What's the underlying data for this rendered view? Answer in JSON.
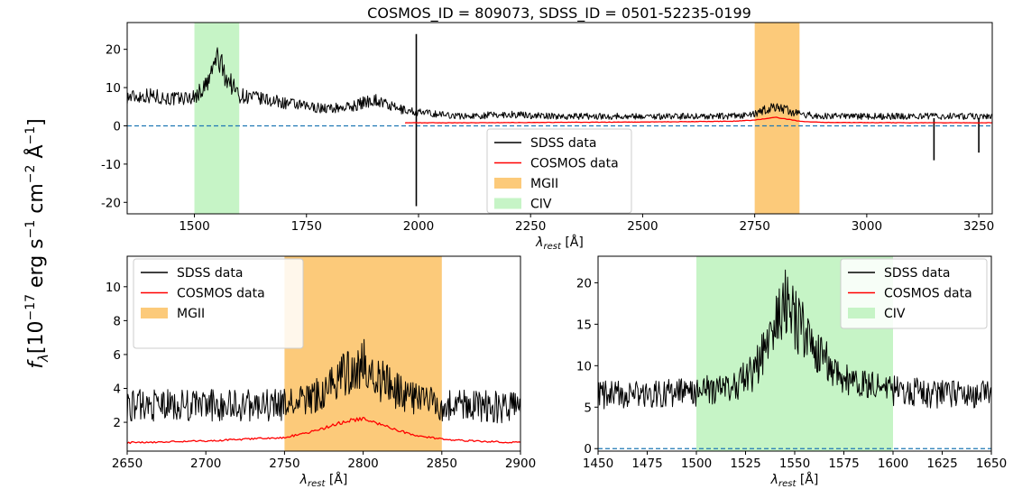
{
  "figure": {
    "title": "COSMOS_ID = 809073, SDSS_ID = 0501-52235-0199",
    "ylabel_main": "f",
    "ylabel_sub": "λ",
    "ylabel_units": "[10",
    "ylabel_exp1": "−17",
    "ylabel_units2": " erg s",
    "ylabel_exp2": "−1",
    "ylabel_units3": " cm",
    "ylabel_exp3": "−2",
    "ylabel_units4": " Å",
    "ylabel_exp4": "−1",
    "ylabel_units5": "]",
    "xlabel_main": "λ",
    "xlabel_sub": "rest",
    "xlabel_units": " [Å]"
  },
  "colors": {
    "sdss": "#000000",
    "cosmos": "#ff0000",
    "mgii": "#fcca7a",
    "civ": "#c6f4c6",
    "zero_line": "#1f77b4"
  },
  "chart_data": [
    {
      "type": "line",
      "panel": "top",
      "xlim": [
        1350,
        3280
      ],
      "ylim": [
        -23,
        27
      ],
      "xticks": [
        1500,
        1750,
        2000,
        2250,
        2500,
        2750,
        3000,
        3250
      ],
      "yticks": [
        -20,
        -10,
        0,
        10,
        20
      ],
      "bands": [
        {
          "name": "CIV",
          "x": [
            1500,
            1600
          ],
          "color": "civ"
        },
        {
          "name": "MGII",
          "x": [
            2750,
            2850
          ],
          "color": "mgii"
        }
      ],
      "series": [
        {
          "name": "SDSS data",
          "key": "sdss",
          "color": "sdss",
          "x": [
            1350,
            1400,
            1450,
            1500,
            1530,
            1550,
            1570,
            1600,
            1650,
            1700,
            1750,
            1800,
            1850,
            1900,
            1950,
            2000,
            2100,
            2200,
            2300,
            2400,
            2500,
            2600,
            2700,
            2750,
            2780,
            2800,
            2850,
            2900,
            3000,
            3100,
            3200,
            3280
          ],
          "y": [
            7.5,
            8,
            7,
            7.5,
            11,
            18,
            13,
            8,
            7,
            6,
            5,
            4.5,
            5,
            7,
            4.5,
            3.5,
            2.5,
            3,
            2.5,
            2.5,
            2.5,
            2.5,
            2.5,
            3,
            4.5,
            5,
            3,
            2.5,
            2.5,
            2.5,
            2.5,
            2.5
          ],
          "spikes": [
            {
              "x": 1995,
              "ymin": -21,
              "ymax": 24
            },
            {
              "x": 3150,
              "ymin": -9,
              "ymax": 2
            },
            {
              "x": 3250,
              "ymin": -7,
              "ymax": 2
            }
          ]
        },
        {
          "name": "COSMOS data",
          "key": "cosmos",
          "color": "cosmos",
          "x": [
            1970,
            2100,
            2300,
            2500,
            2700,
            2750,
            2800,
            2850,
            2900,
            3100,
            3280
          ],
          "y": [
            0.8,
            0.8,
            0.9,
            1.0,
            1.2,
            1.5,
            2.2,
            1.2,
            0.9,
            0.8,
            0.8
          ]
        }
      ],
      "legend": {
        "position": "lower-center",
        "entries": [
          "SDSS data",
          "COSMOS data",
          "MGII",
          "CIV"
        ]
      },
      "zero_line": 0
    },
    {
      "type": "line",
      "panel": "bottom-left",
      "xlim": [
        2650,
        2900
      ],
      "ylim": [
        0.3,
        11.8
      ],
      "xticks": [
        2650,
        2700,
        2750,
        2800,
        2850,
        2900
      ],
      "yticks": [
        2,
        4,
        6,
        8,
        10
      ],
      "bands": [
        {
          "name": "MGII",
          "x": [
            2750,
            2850
          ],
          "color": "mgii"
        }
      ],
      "series": [
        {
          "name": "SDSS data",
          "key": "sdss",
          "color": "sdss",
          "x": [
            2650,
            2700,
            2750,
            2770,
            2790,
            2800,
            2810,
            2830,
            2850,
            2870,
            2900
          ],
          "y": [
            3.0,
            3.0,
            3.0,
            3.5,
            5.0,
            5.5,
            4.5,
            3.5,
            3.0,
            3.0,
            2.8
          ]
        },
        {
          "name": "COSMOS data",
          "key": "cosmos",
          "color": "cosmos",
          "x": [
            2650,
            2700,
            2750,
            2770,
            2790,
            2800,
            2810,
            2830,
            2850,
            2870,
            2900
          ],
          "y": [
            0.8,
            0.9,
            1.1,
            1.5,
            2.1,
            2.2,
            1.9,
            1.3,
            1.0,
            0.9,
            0.8
          ]
        }
      ],
      "legend": {
        "position": "top-left",
        "entries": [
          "SDSS data",
          "COSMOS data",
          "MGII"
        ]
      }
    },
    {
      "type": "line",
      "panel": "bottom-right",
      "xlim": [
        1450,
        1650
      ],
      "ylim": [
        -0.3,
        23.2
      ],
      "xticks": [
        1450,
        1475,
        1500,
        1525,
        1550,
        1575,
        1600,
        1625,
        1650
      ],
      "yticks": [
        0,
        5,
        10,
        15,
        20
      ],
      "bands": [
        {
          "name": "CIV",
          "x": [
            1500,
            1600
          ],
          "color": "civ"
        }
      ],
      "series": [
        {
          "name": "SDSS data",
          "key": "sdss",
          "color": "sdss",
          "x": [
            1450,
            1475,
            1500,
            1520,
            1530,
            1540,
            1545,
            1550,
            1555,
            1560,
            1570,
            1580,
            1600,
            1625,
            1650
          ],
          "y": [
            6.5,
            6.5,
            6.8,
            7.5,
            9.5,
            15,
            17.5,
            15.5,
            14,
            12,
            9.5,
            8,
            7,
            6.5,
            6.5
          ]
        },
        {
          "name": "COSMOS data",
          "key": "cosmos",
          "color": "cosmos",
          "x": [],
          "y": []
        }
      ],
      "legend": {
        "position": "top-right",
        "entries": [
          "SDSS data",
          "COSMOS data",
          "CIV"
        ]
      },
      "zero_line": 0
    }
  ]
}
